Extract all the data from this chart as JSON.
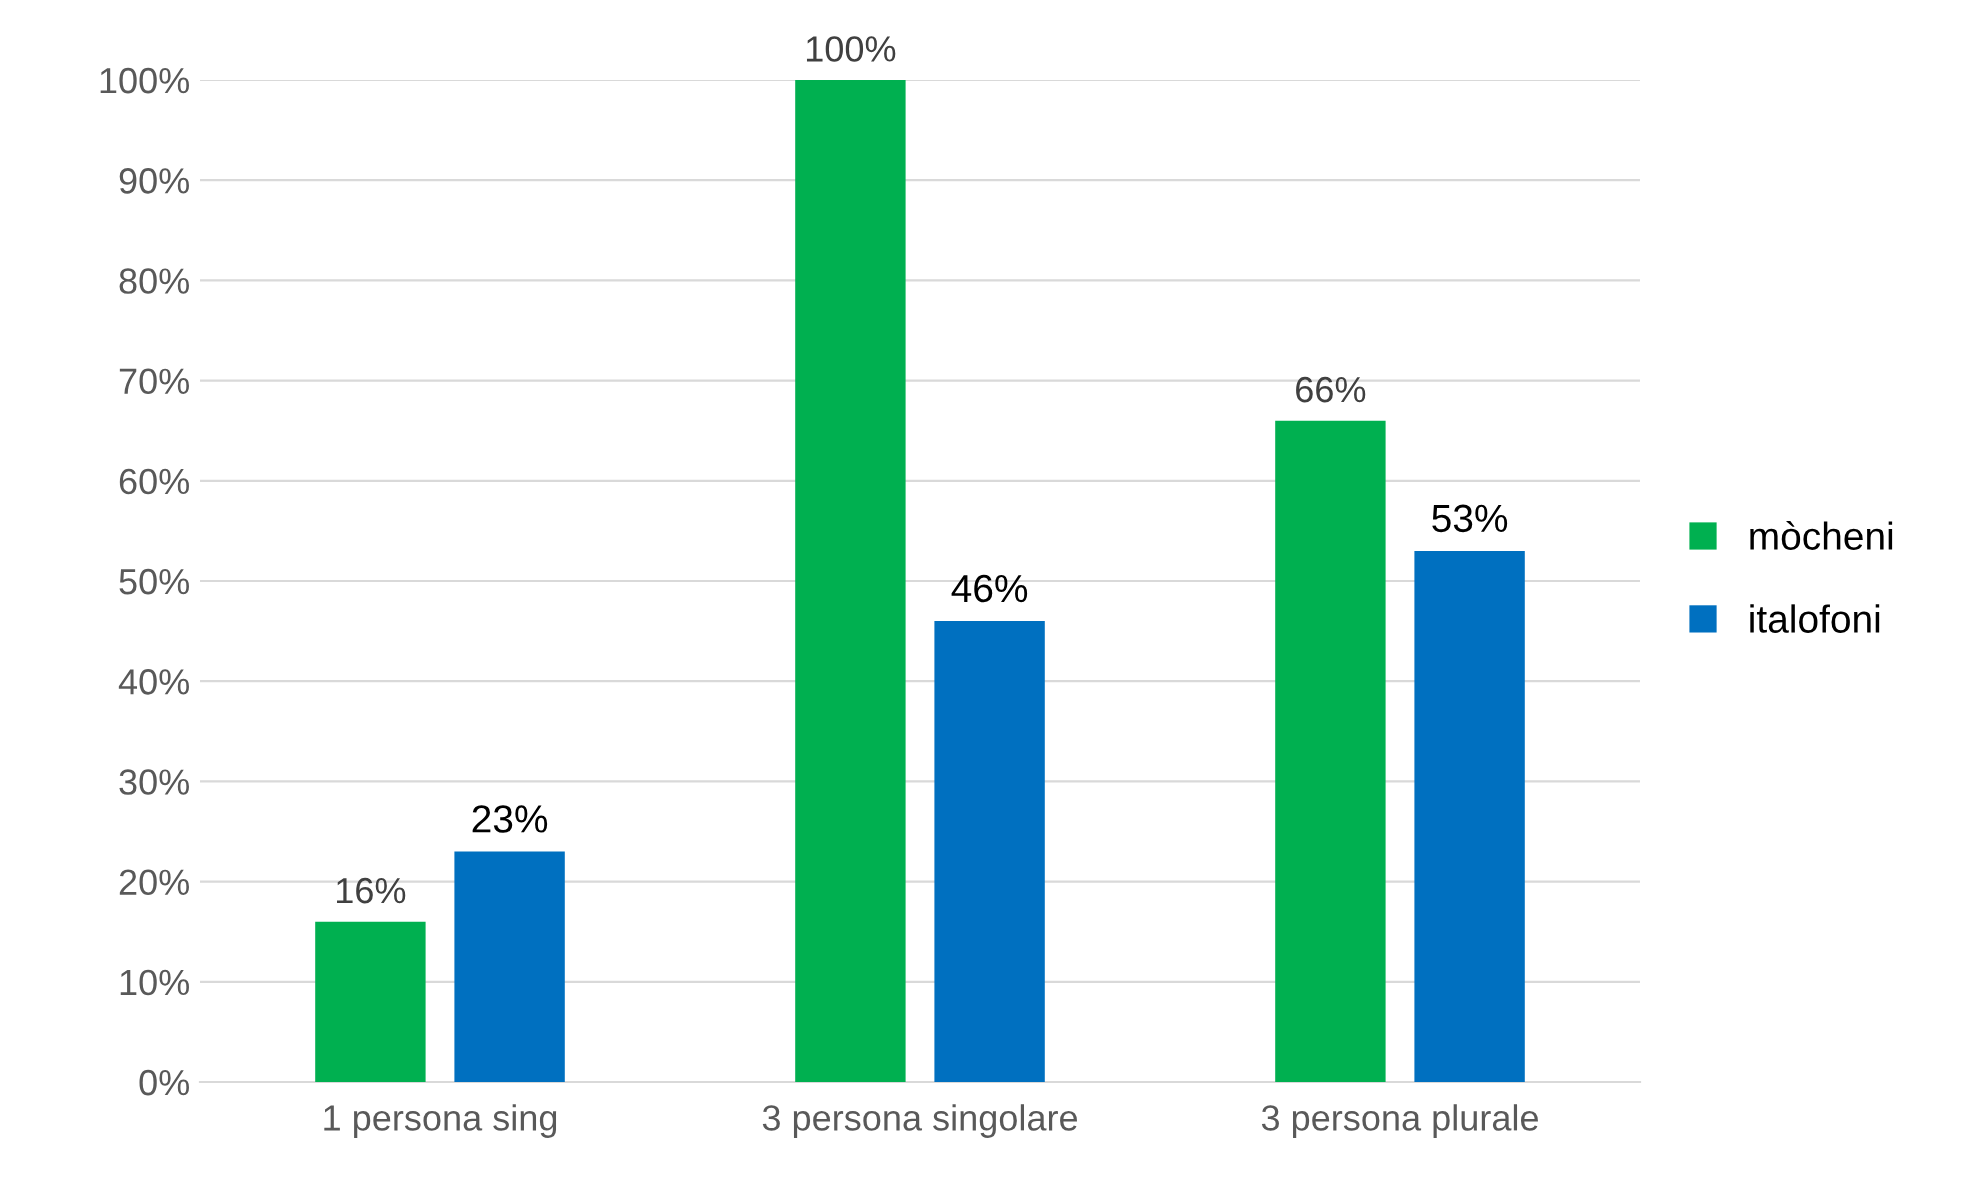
{
  "chart_data": {
    "type": "bar",
    "categories": [
      "1 persona sing",
      "3 persona singolare",
      "3 persona plurale"
    ],
    "series": [
      {
        "name": "mòcheni",
        "color": "#00b050",
        "values": [
          16,
          100,
          66
        ],
        "value_labels": [
          "16%",
          "100%",
          "66%"
        ]
      },
      {
        "name": "italofoni",
        "color": "#0070c0",
        "values": [
          23,
          46,
          53
        ],
        "value_labels": [
          "23%",
          "46%",
          "53%"
        ]
      }
    ],
    "ylim": [
      0,
      100
    ],
    "yticks": [
      {
        "value": 0,
        "label": "0%"
      },
      {
        "value": 10,
        "label": "10%"
      },
      {
        "value": 20,
        "label": "20%"
      },
      {
        "value": 30,
        "label": "30%"
      },
      {
        "value": 40,
        "label": "40%"
      },
      {
        "value": 50,
        "label": "50%"
      },
      {
        "value": 60,
        "label": "60%"
      },
      {
        "value": 70,
        "label": "70%"
      },
      {
        "value": 80,
        "label": "80%"
      },
      {
        "value": 90,
        "label": "90%"
      },
      {
        "value": 100,
        "label": "100%"
      }
    ],
    "grid": "y",
    "legend": "right"
  }
}
